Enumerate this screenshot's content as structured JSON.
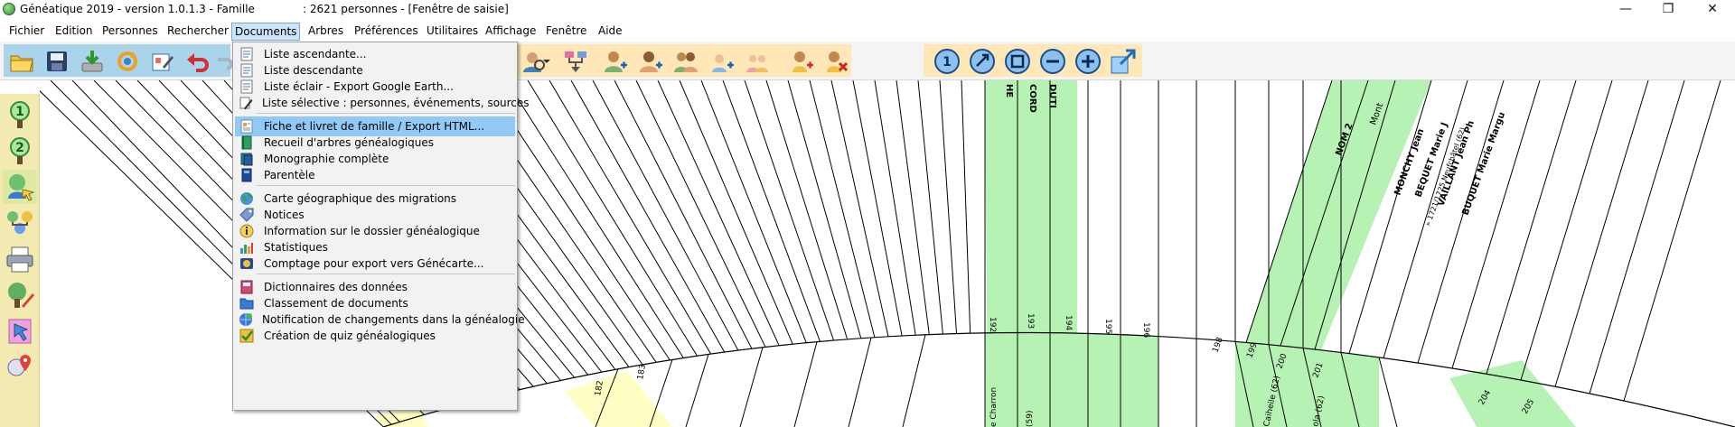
{
  "titlebar": {
    "title_left": "Généatique 2019 - version 1.0.1.3 - Famille",
    "title_right": ": 2621 personnes - [Fenêtre de saisie]",
    "minimize": "—",
    "maximize": "❐",
    "close": "✕"
  },
  "menubar": {
    "items": [
      "Fichier",
      "Edition",
      "Personnes",
      "Rechercher",
      "Documents",
      "Arbres",
      "Préférences",
      "Utilitaires",
      "Affichage",
      "Fenêtre",
      "Aide"
    ],
    "active": "Documents"
  },
  "documents_menu": {
    "items": [
      {
        "label": "Liste ascendante...",
        "icon": "list-icon"
      },
      {
        "label": "Liste descendante",
        "icon": "list-icon"
      },
      {
        "label": "Liste éclair - Export Google Earth...",
        "icon": "list-icon"
      },
      {
        "label": "Liste sélective : personnes, événements, sources",
        "icon": "pencil-icon"
      },
      {
        "label": "Fiche et livret de famille / Export HTML...",
        "icon": "document-icon",
        "highlighted": true
      },
      {
        "label": "Recueil d'arbres généalogiques",
        "icon": "green-book-icon"
      },
      {
        "label": "Monographie complète",
        "icon": "book-stack-icon"
      },
      {
        "label": "Parentèle",
        "icon": "blue-book-icon"
      },
      {
        "label": "Carte géographique des migrations",
        "icon": "globe-icon"
      },
      {
        "label": "Notices",
        "icon": "tag-icon"
      },
      {
        "label": "Information sur le dossier généalogique",
        "icon": "info-icon"
      },
      {
        "label": "Statistiques",
        "icon": "statistics-icon"
      },
      {
        "label": "Comptage pour export vers Génécarte...",
        "icon": "map-export-icon"
      },
      {
        "label": "Dictionnaires des données",
        "icon": "dictionary-icon"
      },
      {
        "label": "Classement de documents",
        "icon": "folder-icon"
      },
      {
        "label": "Notification de changements dans la généalogie",
        "icon": "globe-notify-icon"
      },
      {
        "label": "Création de quiz généalogiques",
        "icon": "checkmark-icon"
      }
    ]
  },
  "toolbar": {
    "file_tools": [
      "open-folder-icon",
      "save-icon",
      "download-icon",
      "refresh-icon",
      "edit-card-icon",
      "undo-icon",
      "redo-icon"
    ],
    "person_tools": [
      "add-person-icon",
      "add-person-female-icon",
      "add-couple-icon",
      "add-child-icon",
      "add-siblings-icon",
      "person-link-icon",
      "delete-person-icon"
    ],
    "zoom_tools": [
      "zoom-1-icon",
      "zoom-fit-icon",
      "zoom-full-icon",
      "zoom-out-icon",
      "zoom-in-icon",
      "expand-window-icon"
    ]
  },
  "leftbar": {
    "tools": [
      "generation-1-icon",
      "generation-2-icon",
      "pointer-person-icon",
      "family-tree-icon",
      "print-icon",
      "edit-tree-icon",
      "cursor-icon",
      "map-marker-icon"
    ]
  },
  "chart": {
    "colors": {
      "green": "#b7f2b5",
      "yellow": "#ffffc4",
      "line": "#000000"
    },
    "sector_numbers": [
      "182",
      "183",
      "192",
      "193",
      "194",
      "195",
      "196",
      "198",
      "199",
      "200",
      "201",
      "204",
      "205"
    ],
    "vertical_names": [
      "HE",
      "CORD",
      "DUTI"
    ],
    "rotated_names": [
      "NOM 2",
      "Mont",
      "MONCHY Jean",
      "BEQUET Marie J",
      "» 1721/1725 Neufchâtel (62)",
      "VAILLANT Jean Ph",
      "BUQUET Marie Margu"
    ],
    "places": [
      "e Charron",
      "(59)",
      "Caiheile (62)",
      "ola (62)"
    ]
  }
}
